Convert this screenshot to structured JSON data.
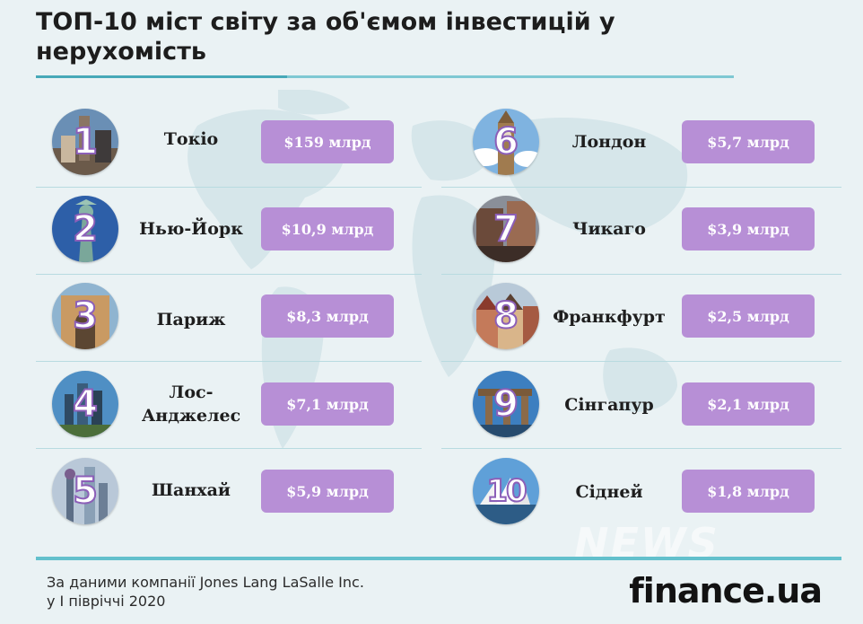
{
  "title": "ТОП-10 міст світу за об'ємом інвестицій у нерухомість",
  "cities": [
    {
      "rank": "1",
      "name": "Токіо",
      "amount": "$159 млрд"
    },
    {
      "rank": "2",
      "name": "Нью-Йорк",
      "amount": "$10,9 млрд"
    },
    {
      "rank": "3",
      "name": "Париж",
      "amount": "$8,3 млрд"
    },
    {
      "rank": "4",
      "name": "Лос-Анджелес",
      "amount": "$7,1 млрд"
    },
    {
      "rank": "5",
      "name": "Шанхай",
      "amount": "$5,9 млрд"
    },
    {
      "rank": "6",
      "name": "Лондон",
      "amount": "$5,7 млрд"
    },
    {
      "rank": "7",
      "name": "Чикаго",
      "amount": "$3,9 млрд"
    },
    {
      "rank": "8",
      "name": "Франкфурт",
      "amount": "$2,5 млрд"
    },
    {
      "rank": "9",
      "name": "Сінгапур",
      "amount": "$2,1 млрд"
    },
    {
      "rank": "10",
      "name": "Сідней",
      "amount": "$1,8 млрд"
    }
  ],
  "source_line1": "За даними компанії Jones Lang LaSalle Inc.",
  "source_line2": "у I півріччі 2020",
  "brand": "finance.ua",
  "watermark": "NEWS",
  "colors": {
    "background": "#eaf2f4",
    "amount_box": "#b78fd6",
    "rank_outline": "#8c5fb8",
    "accent_line": "#63c0cc"
  }
}
